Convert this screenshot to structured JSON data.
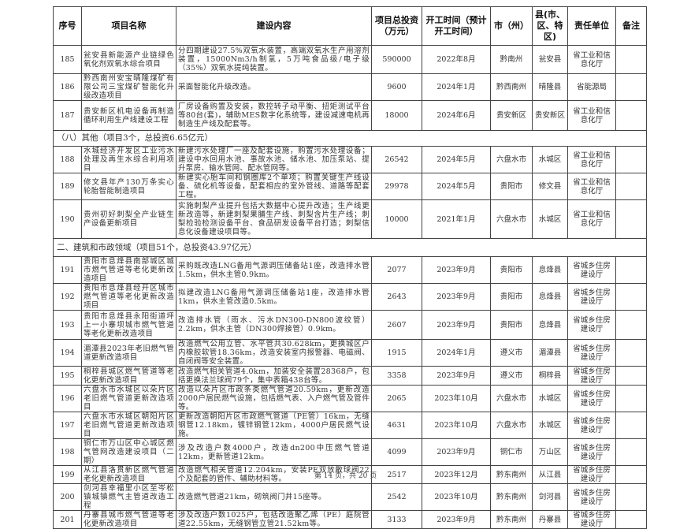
{
  "table": {
    "headers": [
      "序号",
      "项目名称",
      "建设内容",
      "项目总投资（万元）",
      "开工时间（预计开工时间）",
      "市（州）",
      "县(市、区、特区)",
      "责任单位",
      "备注"
    ],
    "rows": [
      {
        "type": "item",
        "no": "185",
        "name": "瓮安县新能源产业链绿色氧化剂双氧水综合项目",
        "content": "分四期建设27.5%双氧水装置，高端双氧水生产用溶剂装置，15000Nm3/h制氢，5万吨食品级/电子级（35%）双氧水提纯装置。",
        "investment": "590000",
        "start": "2022年8月",
        "city": "黔南州",
        "county": "瓮安县",
        "unit": "省工业和信息化厅",
        "note": ""
      },
      {
        "type": "item",
        "no": "186",
        "name": "黔西南州安宝晴隆煤矿有限公司三宝煤矿智能化升级改造项目",
        "content": "采面智能化升级改造。",
        "investment": "9600",
        "start": "2024年1月",
        "city": "黔西南州",
        "county": "晴隆县",
        "unit": "省能源局",
        "note": ""
      },
      {
        "type": "item",
        "no": "187",
        "name": "贵安新区机电设备再制造循环利用生产线建设工程",
        "content": "厂房设备购置及安装，数控转子动平衡、扭矩测试平台等80台(套)，辅助MES数字化系统等，建设减速电机再制造生产线及配套等。",
        "investment": "18000",
        "start": "2024年6月",
        "city": "贵安新区",
        "county": "贵安新区",
        "unit": "省工业和信息化厅",
        "note": ""
      },
      {
        "type": "section",
        "text": "（八）其他（项目3个，总投资6.65亿元）"
      },
      {
        "type": "item",
        "no": "188",
        "name": "水城经济开发区工业污水处理及再生水综合利用项目",
        "content": "新建污水处理厂一座及配套设施，购置污水处理设备；建设中水回用水池、事故水池、储水池、加压泵站、提升泵房、输水管网、配水管网等。",
        "investment": "26542",
        "start": "2024年5月",
        "city": "六盘水市",
        "county": "水城区",
        "unit": "省工业和信息化厅",
        "note": ""
      },
      {
        "type": "item",
        "no": "189",
        "name": "修文县年产130万条实心轮胎智能制造项目",
        "content": "新建实心胎车间和钢圈库2个单项；购置关键生产线设备、硫化机等设备，配套相应的室外管线、道路等配套工程。",
        "investment": "29978",
        "start": "2024年5月",
        "city": "贵阳市",
        "county": "修文县",
        "unit": "省工业和信息化厅",
        "note": ""
      },
      {
        "type": "item",
        "no": "190",
        "name": "贵州初好刺梨全产业链生产设备更新项目",
        "content": "实施刺梨产业提升包括大数据中心提升改造；生产线更新改造等，新建刺梨果脯生产线、刺梨含片生产线；刺梨检验检测设备平台、食品研发设备平台打造；刺梨信息化设备建设项目等。",
        "investment": "10000",
        "start": "2021年1月",
        "city": "六盘水市",
        "county": "水城区",
        "unit": "省工业和信息化厅",
        "note": ""
      },
      {
        "type": "section",
        "text": "二、建筑和市政领域（项目51个，总投资43.97亿元）"
      },
      {
        "type": "item",
        "no": "191",
        "name": "贵阳市息烽县南部城区城市燃气管道等老化更新改造项目",
        "content": "采购既改造LNG备用气源调压储备站1座，改造排水管1.5km，供水主管0.9km。",
        "investment": "2077",
        "start": "2023年9月",
        "city": "贵阳市",
        "county": "息烽县",
        "unit": "省城乡住房建设厅",
        "note": ""
      },
      {
        "type": "item",
        "no": "192",
        "name": "贵阳市息烽县经开区城市燃气管道等老化更新改造项目",
        "content": "拟建改造LNG备用气源调压储备站1座，改造排水管1km，供水主管改造0.5km。",
        "investment": "2643",
        "start": "2023年9月",
        "city": "贵阳市",
        "county": "息烽县",
        "unit": "省城乡住房建设厅",
        "note": ""
      },
      {
        "type": "item",
        "no": "193",
        "name": "贵阳市息烽县永阳街道坪上一小寨坝城市燃气管道等老化更新改造项目",
        "content": "改造排水管（雨水、污水DN300-DN800波纹管）2.2km，供水主管（DN300焊接管）0.9km。",
        "investment": "2607",
        "start": "2023年9月",
        "city": "贵阳市",
        "county": "息烽县",
        "unit": "省城乡住房建设厅",
        "note": ""
      },
      {
        "type": "item",
        "no": "194",
        "name": "湄潭县2023年老旧燃气管道更新改造项目",
        "content": "改造燃气公用立管、水平管共30.628km，更换城区户内橡胶软管18.36km，改造安装室内报警器、电磁阀、自闭阀等安全装置。",
        "investment": "1915",
        "start": "2024年1月",
        "city": "遵义市",
        "county": "湄潭县",
        "unit": "省城乡住房建设厅",
        "note": ""
      },
      {
        "type": "item",
        "no": "195",
        "name": "桐梓县城区燃气管道等老化更新改造项目",
        "content": "改造燃气相关管道4.0km，加装安全装置28368户，包括更换法兰球阀79个，集中表箱438台等。",
        "investment": "3358",
        "start": "2023年9月",
        "city": "遵义市",
        "county": "桐梓县",
        "unit": "省城乡住房建设厅",
        "note": ""
      },
      {
        "type": "item",
        "no": "196",
        "name": "六盘水市水城区以朵片区老旧燃气管道更新改造项目",
        "content": "改造以朵片区市政条类燃气管道20.59km，更新改造2000户居民燃气设施，包括燃气表、入户燃气管及管件等。",
        "investment": "2065",
        "start": "2023年10月",
        "city": "六盘水市",
        "county": "水城区",
        "unit": "省城乡住房建设厅",
        "note": ""
      },
      {
        "type": "item",
        "no": "197",
        "name": "六盘水市水城区朝阳片区老旧燃气管道更新改造项目",
        "content": "更新改造朝阳片区市政燃气管道（PE管）16km，无缝钢管12.18km，镀锌钢管12km，4000户居民燃气设施。",
        "investment": "4631",
        "start": "2023年10月",
        "city": "六盘水市",
        "county": "水城区",
        "unit": "省城乡住房建设厅",
        "note": ""
      },
      {
        "type": "item",
        "no": "198",
        "name": "铜仁市万山区中心城区燃气管网改造建设项目（二期）",
        "content": "涉及改造户数4000户，改造dn200中压燃气管道12km，更新管道12km。",
        "investment": "4099",
        "start": "2023年9月",
        "city": "铜仁市",
        "county": "万山区",
        "unit": "省城乡住房建设厅",
        "note": ""
      },
      {
        "type": "item",
        "no": "199",
        "name": "从江县洛贯新区燃气管道老化更新改造项目",
        "content": "改造燃气相关管道12.204km，安装PE双放散球阀22个及配套的管件、辅助材料等。",
        "investment": "2517",
        "start": "2023年12月",
        "city": "黔东南州",
        "county": "从江县",
        "unit": "省城乡住房建设厅",
        "note": ""
      },
      {
        "type": "item",
        "no": "200",
        "name": "剑河县幸福里小区至岑松镇城镇燃气主管道改造工程",
        "content": "改造燃气管道21km，砌筑阀门井15座等。",
        "investment": "2542",
        "start": "2023年10月",
        "city": "黔东南州",
        "county": "剑河县",
        "unit": "省城乡住房建设厅",
        "note": ""
      },
      {
        "type": "item",
        "no": "201",
        "name": "丹寨县城市燃气管道等老化更新改造项目",
        "content": "涉及改造户数1025户，包括改造聚乙烯（PE）庭院管道22.55km，无缝钢管立管21.52km等。",
        "investment": "3133",
        "start": "2023年9月",
        "city": "黔东南州",
        "county": "丹寨县",
        "unit": "省城乡住房建设厅",
        "note": ""
      }
    ]
  },
  "footer": {
    "page_label": "第 14 页，共 20 页"
  }
}
